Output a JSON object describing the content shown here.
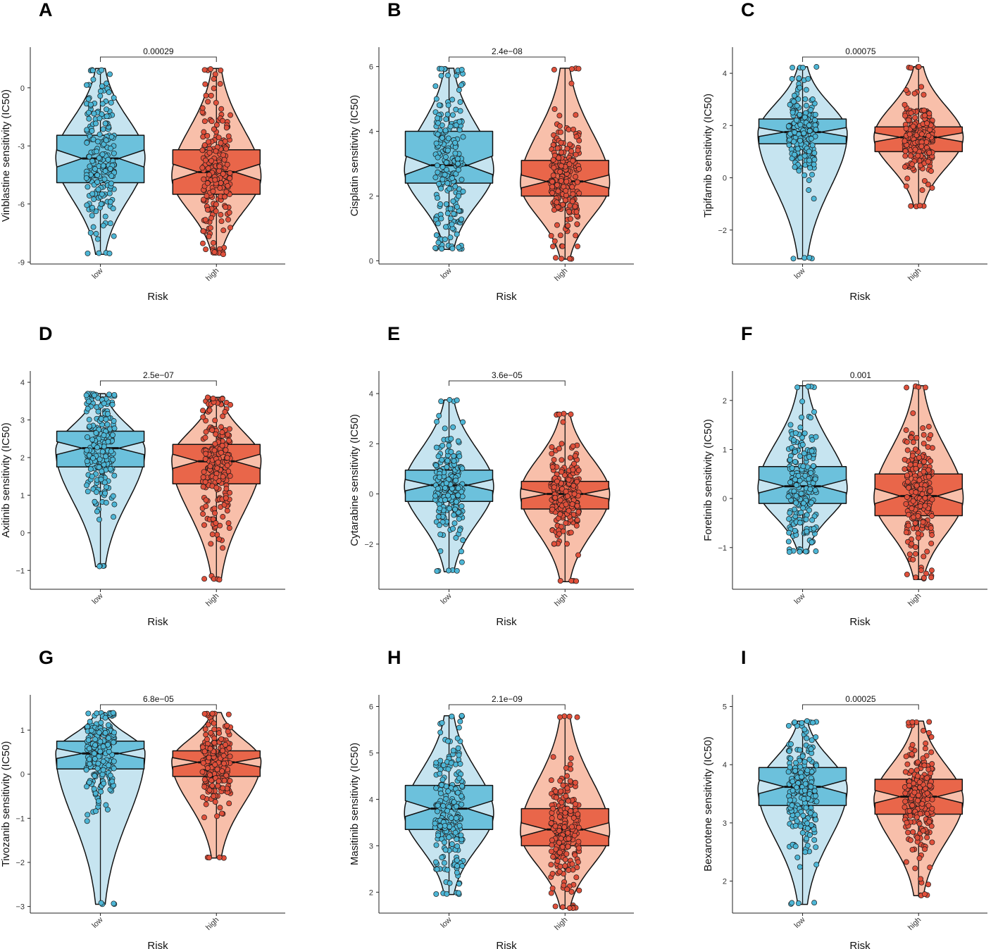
{
  "figure": {
    "colors": {
      "low_violin": "#c6e4f0",
      "low_box": "#6cc1dc",
      "low_point": "#4db6d6",
      "high_violin": "#f8bfaa",
      "high_box": "#e9664a",
      "high_point": "#e0503b",
      "stroke": "#111111"
    }
  },
  "chart_data": [
    {
      "letter": "A",
      "type": "violin-box",
      "ylabel": "Vinblastine sensitivity (IC50)",
      "xlabel": "Risk",
      "categories": [
        "low",
        "high"
      ],
      "ylim": [
        -9.1,
        2.1
      ],
      "yticks": [
        -9,
        -6,
        -3,
        0
      ],
      "yticklabels": [
        "-9",
        "-6",
        "-3",
        "0"
      ],
      "p_value": "0.00029",
      "groups": [
        {
          "name": "low",
          "q1": -4.9,
          "median": -3.65,
          "q3": -2.45,
          "min": -8.6,
          "max": 1.0,
          "mode": -3.6
        },
        {
          "name": "high",
          "q1": -5.5,
          "median": -4.35,
          "q3": -3.2,
          "min": -8.6,
          "max": 1.0,
          "mode": -4.6
        }
      ]
    },
    {
      "letter": "B",
      "type": "violin-box",
      "ylabel": "Cisplatin sensitivity (IC50)",
      "xlabel": "Risk",
      "categories": [
        "low",
        "high"
      ],
      "ylim": [
        -0.1,
        6.6
      ],
      "yticks": [
        0,
        2,
        4,
        6
      ],
      "yticklabels": [
        "0",
        "2",
        "4",
        "6"
      ],
      "p_value": "2.4e−08",
      "groups": [
        {
          "name": "low",
          "q1": 2.4,
          "median": 2.95,
          "q3": 4.0,
          "min": 0.35,
          "max": 5.95,
          "mode": 2.8
        },
        {
          "name": "high",
          "q1": 2.0,
          "median": 2.45,
          "q3": 3.1,
          "min": 0.05,
          "max": 5.95,
          "mode": 2.4
        }
      ]
    },
    {
      "letter": "C",
      "type": "violin-box",
      "ylabel": "Tipifarnib sensitivity (IC50)",
      "xlabel": "Risk",
      "categories": [
        "low",
        "high"
      ],
      "ylim": [
        -3.3,
        5.0
      ],
      "yticks": [
        -2,
        0,
        2,
        4
      ],
      "yticklabels": [
        "−2",
        "0",
        "2",
        "4"
      ],
      "p_value": "0.00075",
      "groups": [
        {
          "name": "low",
          "q1": 1.3,
          "median": 1.75,
          "q3": 2.25,
          "min": -3.1,
          "max": 4.25,
          "mode": 1.7
        },
        {
          "name": "high",
          "q1": 1.0,
          "median": 1.55,
          "q3": 1.95,
          "min": -1.1,
          "max": 4.25,
          "mode": 1.55
        }
      ]
    },
    {
      "letter": "D",
      "type": "violin-box",
      "ylabel": "Axitinib sensitivity (IC50)",
      "xlabel": "Risk",
      "categories": [
        "low",
        "high"
      ],
      "ylim": [
        -1.5,
        4.3
      ],
      "yticks": [
        -1,
        0,
        1,
        2,
        3,
        4
      ],
      "yticklabels": [
        "−1",
        "0",
        "1",
        "2",
        "3",
        "4"
      ],
      "p_value": "2.5e−07",
      "groups": [
        {
          "name": "low",
          "q1": 1.75,
          "median": 2.25,
          "q3": 2.7,
          "min": -0.9,
          "max": 3.7,
          "mode": 2.2
        },
        {
          "name": "high",
          "q1": 1.3,
          "median": 1.9,
          "q3": 2.35,
          "min": -1.25,
          "max": 3.6,
          "mode": 1.95
        }
      ]
    },
    {
      "letter": "E",
      "type": "violin-box",
      "ylabel": "Cytarabine sensitivity (IC50)",
      "xlabel": "Risk",
      "categories": [
        "low",
        "high"
      ],
      "ylim": [
        -3.8,
        4.9
      ],
      "yticks": [
        -2,
        0,
        2,
        4
      ],
      "yticklabels": [
        "−2",
        "0",
        "2",
        "4"
      ],
      "p_value": "3.6e−05",
      "groups": [
        {
          "name": "low",
          "q1": -0.3,
          "median": 0.35,
          "q3": 0.95,
          "min": -3.1,
          "max": 3.75,
          "mode": 0.3
        },
        {
          "name": "high",
          "q1": -0.6,
          "median": 0.0,
          "q3": 0.5,
          "min": -3.5,
          "max": 3.2,
          "mode": 0.0
        }
      ]
    },
    {
      "letter": "F",
      "type": "violin-box",
      "ylabel": "Foretinib sensitivity (IC50)",
      "xlabel": "Risk",
      "categories": [
        "low",
        "high"
      ],
      "ylim": [
        -1.85,
        2.6
      ],
      "yticks": [
        -1,
        0,
        1,
        2
      ],
      "yticklabels": [
        "−1",
        "0",
        "1",
        "2"
      ],
      "p_value": "0.001",
      "groups": [
        {
          "name": "low",
          "q1": -0.1,
          "median": 0.25,
          "q3": 0.65,
          "min": -1.1,
          "max": 2.3,
          "mode": 0.2
        },
        {
          "name": "high",
          "q1": -0.35,
          "median": 0.05,
          "q3": 0.5,
          "min": -1.65,
          "max": 2.3,
          "mode": 0.0
        }
      ]
    },
    {
      "letter": "G",
      "type": "violin-box",
      "ylabel": "Tivozanib sensitivity (IC50)",
      "xlabel": "Risk",
      "categories": [
        "low",
        "high"
      ],
      "ylim": [
        -3.15,
        1.8
      ],
      "yticks": [
        -3,
        -2,
        -1,
        0,
        1
      ],
      "yticklabels": [
        "−3",
        "−2",
        "−1",
        "0",
        "1"
      ],
      "p_value": "6.8e−05",
      "groups": [
        {
          "name": "low",
          "q1": 0.12,
          "median": 0.47,
          "q3": 0.75,
          "min": -2.95,
          "max": 1.4,
          "mode": 0.5
        },
        {
          "name": "high",
          "q1": -0.05,
          "median": 0.27,
          "q3": 0.53,
          "min": -1.9,
          "max": 1.4,
          "mode": 0.3
        }
      ]
    },
    {
      "letter": "H",
      "type": "violin-box",
      "ylabel": "Masitinib sensitivity (IC50)",
      "xlabel": "Risk",
      "categories": [
        "low",
        "high"
      ],
      "ylim": [
        1.55,
        6.25
      ],
      "yticks": [
        2,
        3,
        4,
        5,
        6
      ],
      "yticklabels": [
        "2",
        "3",
        "4",
        "5",
        "6"
      ],
      "p_value": "2.1e−09",
      "groups": [
        {
          "name": "low",
          "q1": 3.35,
          "median": 3.8,
          "q3": 4.3,
          "min": 1.95,
          "max": 5.8,
          "mode": 3.7
        },
        {
          "name": "high",
          "q1": 3.0,
          "median": 3.35,
          "q3": 3.8,
          "min": 1.65,
          "max": 5.8,
          "mode": 3.3
        }
      ]
    },
    {
      "letter": "I",
      "type": "violin-box",
      "ylabel": "Bexarotene sensitivity (IC50)",
      "xlabel": "Risk",
      "categories": [
        "low",
        "high"
      ],
      "ylim": [
        1.45,
        5.2
      ],
      "yticks": [
        2,
        3,
        4,
        5
      ],
      "yticklabels": [
        "2",
        "3",
        "4",
        "5"
      ],
      "p_value": "0.00025",
      "groups": [
        {
          "name": "low",
          "q1": 3.3,
          "median": 3.62,
          "q3": 3.95,
          "min": 1.6,
          "max": 4.75,
          "mode": 3.6
        },
        {
          "name": "high",
          "q1": 3.15,
          "median": 3.45,
          "q3": 3.75,
          "min": 1.75,
          "max": 4.75,
          "mode": 3.4
        }
      ]
    }
  ]
}
